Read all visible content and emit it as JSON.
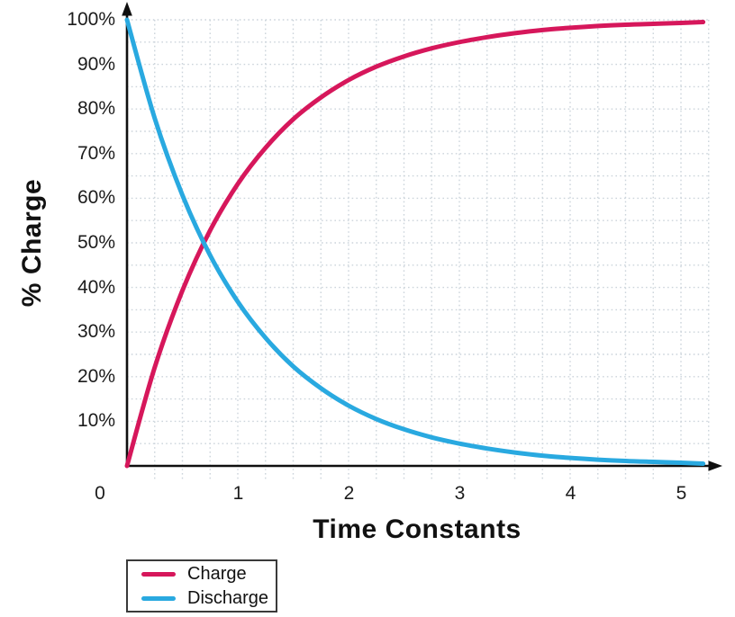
{
  "figure": {
    "background": "#ffffff",
    "axis_color": "#0f0f0f",
    "grid_color": "#ccd4db",
    "text_color": "#1c1c1c"
  },
  "chart_data": {
    "type": "line",
    "title": "",
    "xlabel": "Time Constants",
    "ylabel": "% Charge",
    "xlim": [
      0,
      5.4
    ],
    "ylim": [
      0,
      105
    ],
    "x_tick_values": [
      0,
      1,
      2,
      3,
      4,
      5
    ],
    "x_tick_labels": [
      "0",
      "1",
      "2",
      "3",
      "4",
      "5"
    ],
    "y_tick_values": [
      100,
      90,
      80,
      70,
      60,
      50,
      40,
      30,
      20,
      10
    ],
    "y_tick_labels": [
      "100%",
      "90%",
      "80%",
      "70%",
      "60%",
      "50%",
      "40%",
      "30%",
      "20%",
      "10%"
    ],
    "grid": {
      "visible": true,
      "style": "dotted",
      "x_step": 0.25,
      "x_max": 5.25,
      "y_step": 5,
      "y_max": 100
    },
    "legend": {
      "position": "below-left",
      "border": true
    },
    "series": [
      {
        "name": "Charge",
        "color": "#d6175b",
        "x": [
          0,
          0.25,
          0.5,
          0.75,
          1.0,
          1.25,
          1.5,
          1.75,
          2.0,
          2.25,
          2.5,
          2.75,
          3.0,
          3.25,
          3.5,
          3.75,
          4.0,
          4.25,
          4.5,
          4.75,
          5.0,
          5.2
        ],
        "y": [
          0,
          22.1,
          39.3,
          52.8,
          63.2,
          71.3,
          77.7,
          82.6,
          86.5,
          89.5,
          91.8,
          93.6,
          95.0,
          96.1,
          97.0,
          97.7,
          98.2,
          98.6,
          98.9,
          99.1,
          99.3,
          99.5
        ]
      },
      {
        "name": "Discharge",
        "color": "#29a9e0",
        "x": [
          0,
          0.25,
          0.5,
          0.75,
          1.0,
          1.25,
          1.5,
          1.75,
          2.0,
          2.25,
          2.5,
          2.75,
          3.0,
          3.25,
          3.5,
          3.75,
          4.0,
          4.25,
          4.5,
          4.75,
          5.0,
          5.2
        ],
        "y": [
          100,
          77.9,
          60.7,
          47.2,
          36.8,
          28.7,
          22.3,
          17.4,
          13.5,
          10.5,
          8.2,
          6.4,
          5.0,
          3.9,
          3.0,
          2.3,
          1.8,
          1.4,
          1.1,
          0.9,
          0.7,
          0.5
        ]
      }
    ]
  }
}
